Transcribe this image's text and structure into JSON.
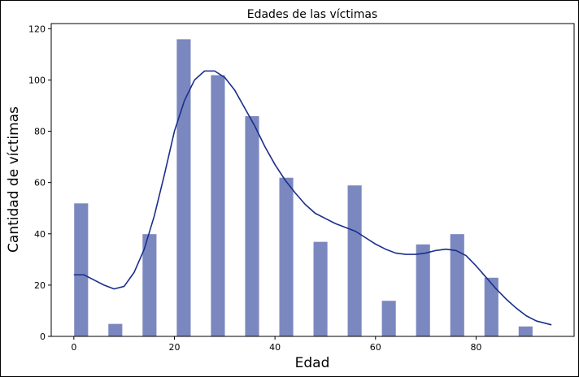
{
  "chart_data": {
    "type": "bar",
    "title": "Edades de las víctimas",
    "xlabel": "Edad",
    "ylabel": "Cantidad de víctimas",
    "xlim": [
      -4.5,
      99.5
    ],
    "ylim": [
      0,
      122
    ],
    "xticks": [
      0,
      20,
      40,
      60,
      80
    ],
    "yticks": [
      0,
      20,
      40,
      60,
      80,
      100,
      120
    ],
    "bar_color": "#7b88bf",
    "bar_edge_color": "#ffffff",
    "kde_color": "#1a2e8c",
    "grid": false,
    "bars": [
      {
        "x0": 0.0,
        "x1": 2.9,
        "value": 52
      },
      {
        "x0": 6.8,
        "x1": 9.7,
        "value": 5
      },
      {
        "x0": 13.6,
        "x1": 16.5,
        "value": 40
      },
      {
        "x0": 20.4,
        "x1": 23.3,
        "value": 116
      },
      {
        "x0": 27.2,
        "x1": 30.1,
        "value": 102
      },
      {
        "x0": 34.0,
        "x1": 36.9,
        "value": 86
      },
      {
        "x0": 40.8,
        "x1": 43.7,
        "value": 62
      },
      {
        "x0": 47.6,
        "x1": 50.5,
        "value": 37
      },
      {
        "x0": 54.4,
        "x1": 57.3,
        "value": 59
      },
      {
        "x0": 61.2,
        "x1": 64.1,
        "value": 14
      },
      {
        "x0": 68.0,
        "x1": 70.9,
        "value": 36
      },
      {
        "x0": 74.8,
        "x1": 77.7,
        "value": 40
      },
      {
        "x0": 81.6,
        "x1": 84.5,
        "value": 23
      },
      {
        "x0": 88.4,
        "x1": 91.3,
        "value": 4
      }
    ],
    "kde": {
      "x": [
        0,
        2,
        4,
        6,
        8,
        10,
        12,
        14,
        16,
        18,
        20,
        22,
        24,
        26,
        28,
        30,
        32,
        34,
        36,
        38,
        40,
        42,
        44,
        46,
        48,
        50,
        52,
        54,
        56,
        58,
        60,
        62,
        64,
        66,
        68,
        70,
        72,
        74,
        76,
        78,
        80,
        82,
        84,
        86,
        88,
        90,
        92,
        95
      ],
      "y": [
        24,
        24,
        22,
        20,
        18.5,
        19.5,
        25,
        34,
        47,
        63,
        80,
        92,
        100,
        103.5,
        103.5,
        101,
        96,
        89,
        82,
        74,
        67,
        61,
        56,
        51.5,
        48,
        46,
        44,
        42.5,
        41,
        38.5,
        36,
        34,
        32.5,
        32,
        32,
        32.5,
        33.5,
        34,
        33.5,
        31.5,
        27.5,
        23,
        18.5,
        14.5,
        11,
        8,
        6,
        4.5
      ]
    }
  }
}
